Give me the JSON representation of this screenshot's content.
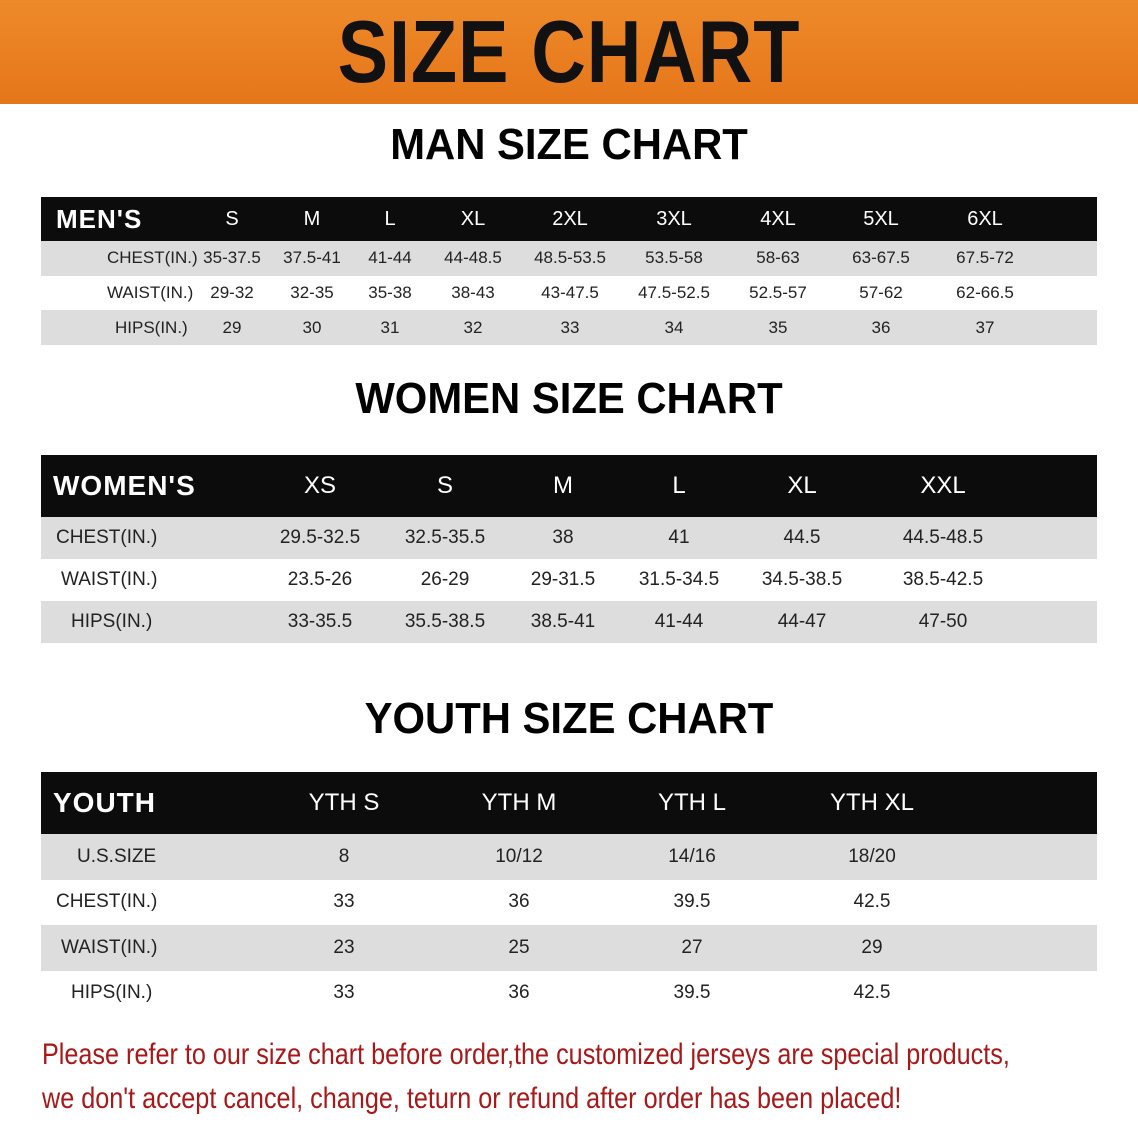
{
  "title": "SIZE CHART",
  "colors": {
    "banner": "#e97f20",
    "header_row": "#0c0c0c",
    "note_text": "#a81818"
  },
  "chart_data": [
    {
      "type": "table",
      "title": "MAN SIZE CHART",
      "columns": [
        "MEN'S",
        "S",
        "M",
        "L",
        "XL",
        "2XL",
        "3XL",
        "4XL",
        "5XL",
        "6XL"
      ],
      "rows": [
        [
          "CHEST(IN.)",
          "35-37.5",
          "37.5-41",
          "41-44",
          "44-48.5",
          "48.5-53.5",
          "53.5-58",
          "58-63",
          "63-67.5",
          "67.5-72"
        ],
        [
          "WAIST(IN.)",
          "29-32",
          "32-35",
          "35-38",
          "38-43",
          "43-47.5",
          "47.5-52.5",
          "52.5-57",
          "57-62",
          "62-66.5"
        ],
        [
          "HIPS(IN.)",
          "29",
          "30",
          "31",
          "32",
          "33",
          "34",
          "35",
          "36",
          "37"
        ]
      ]
    },
    {
      "type": "table",
      "title": "WOMEN SIZE CHART",
      "columns": [
        "WOMEN'S",
        "XS",
        "S",
        "M",
        "L",
        "XL",
        "XXL"
      ],
      "rows": [
        [
          "CHEST(IN.)",
          "29.5-32.5",
          "32.5-35.5",
          "38",
          "41",
          "44.5",
          "44.5-48.5"
        ],
        [
          "WAIST(IN.)",
          "23.5-26",
          "26-29",
          "29-31.5",
          "31.5-34.5",
          "34.5-38.5",
          "38.5-42.5"
        ],
        [
          "HIPS(IN.)",
          "33-35.5",
          "35.5-38.5",
          "38.5-41",
          "41-44",
          "44-47",
          "47-50"
        ]
      ]
    },
    {
      "type": "table",
      "title": "YOUTH SIZE CHART",
      "columns": [
        "YOUTH",
        "YTH S",
        "YTH M",
        "YTH L",
        "YTH XL"
      ],
      "rows": [
        [
          "U.S.SIZE",
          "8",
          "10/12",
          "14/16",
          "18/20"
        ],
        [
          "CHEST(IN.)",
          "33",
          "36",
          "39.5",
          "42.5"
        ],
        [
          "WAIST(IN.)",
          "23",
          "25",
          "27",
          "29"
        ],
        [
          "HIPS(IN.)",
          "33",
          "36",
          "39.5",
          "42.5"
        ]
      ]
    }
  ],
  "note": {
    "line1": "Please refer to our size chart before order,the customized jerseys are special products,",
    "line2": "we don't accept cancel, change, teturn or refund after order has been placed!"
  }
}
